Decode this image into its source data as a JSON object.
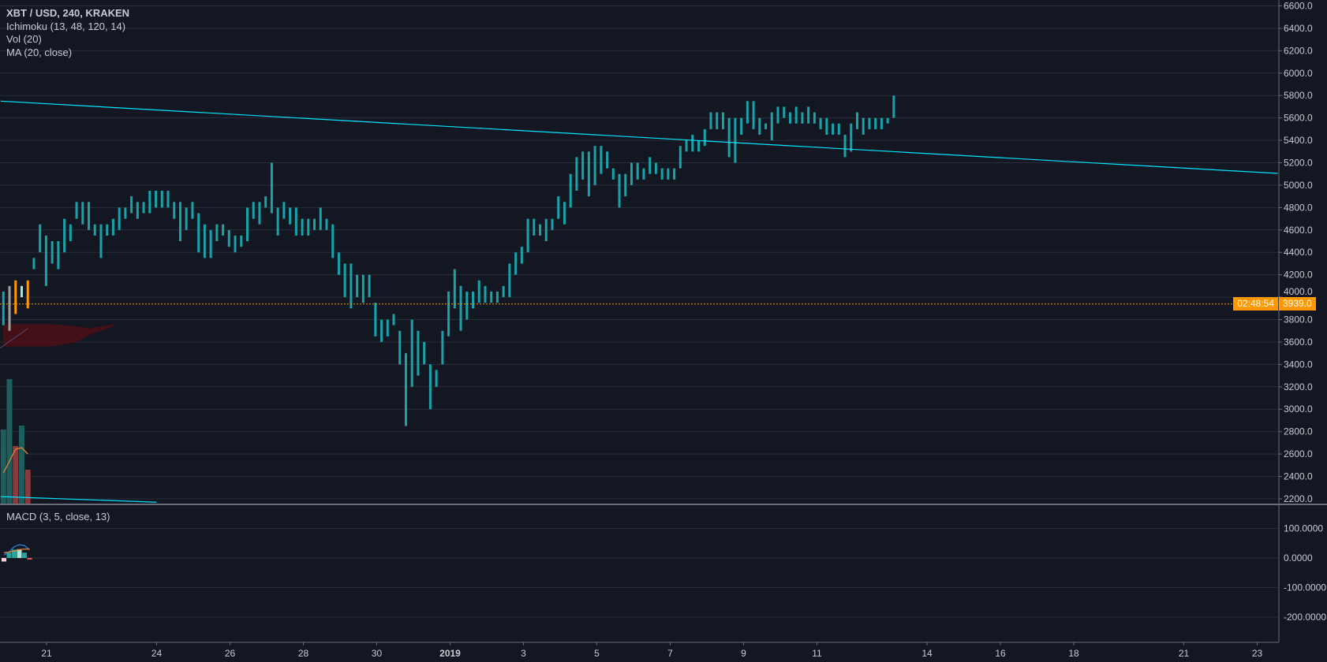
{
  "legend": {
    "symbol": "XBT / USD, 240, KRAKEN",
    "ichimoku": "Ichimoku (13, 48, 120, 14)",
    "volume": "Vol (20)",
    "ma": "MA (20, close)",
    "macd": "MACD (3, 5, close, 13)"
  },
  "last_price": {
    "label": "3939.0",
    "value": 3939.0,
    "countdown": "02:48:54",
    "color": "#ff9800"
  },
  "colors": {
    "background": "#131722",
    "bar": "#19a2a8",
    "grid": "#2a2e39",
    "trendline": "#00e5ff",
    "cloud": "#4a1016",
    "volume_up": "#1d5d5b",
    "volume_down": "#8a3a3f",
    "ma": "#e0883a",
    "macd_line": "#2a7fd4",
    "signal_line": "#e0883a"
  },
  "chart_data": [
    {
      "type": "ohlc-bars",
      "title": "XBT / USD, 240, KRAKEN",
      "interval_minutes": 240,
      "start": "2018-12-19 20:00",
      "bar_format": [
        "high",
        "low"
      ],
      "bars": [
        [
          4050,
          3750
        ],
        [
          4100,
          3700
        ],
        [
          4150,
          3850
        ],
        [
          4100,
          4000
        ],
        [
          4150,
          3900
        ],
        [
          4350,
          4250
        ],
        [
          4650,
          4400
        ],
        [
          4550,
          4100
        ],
        [
          4500,
          4300
        ],
        [
          4500,
          4250
        ],
        [
          4700,
          4400
        ],
        [
          4650,
          4500
        ],
        [
          4850,
          4700
        ],
        [
          4850,
          4650
        ],
        [
          4850,
          4600
        ],
        [
          4650,
          4550
        ],
        [
          4650,
          4350
        ],
        [
          4650,
          4550
        ],
        [
          4700,
          4550
        ],
        [
          4800,
          4600
        ],
        [
          4800,
          4700
        ],
        [
          4900,
          4750
        ],
        [
          4850,
          4700
        ],
        [
          4850,
          4750
        ],
        [
          4950,
          4750
        ],
        [
          4950,
          4800
        ],
        [
          4950,
          4800
        ],
        [
          4950,
          4800
        ],
        [
          4850,
          4700
        ],
        [
          4850,
          4500
        ],
        [
          4800,
          4600
        ],
        [
          4850,
          4700
        ],
        [
          4750,
          4400
        ],
        [
          4650,
          4350
        ],
        [
          4600,
          4350
        ],
        [
          4650,
          4500
        ],
        [
          4650,
          4550
        ],
        [
          4600,
          4450
        ],
        [
          4550,
          4400
        ],
        [
          4550,
          4450
        ],
        [
          4800,
          4500
        ],
        [
          4850,
          4700
        ],
        [
          4850,
          4650
        ],
        [
          4900,
          4800
        ],
        [
          5200,
          4750
        ],
        [
          4800,
          4550
        ],
        [
          4850,
          4700
        ],
        [
          4800,
          4650
        ],
        [
          4800,
          4550
        ],
        [
          4700,
          4550
        ],
        [
          4700,
          4550
        ],
        [
          4700,
          4600
        ],
        [
          4800,
          4600
        ],
        [
          4700,
          4600
        ],
        [
          4650,
          4350
        ],
        [
          4400,
          4200
        ],
        [
          4300,
          4000
        ],
        [
          4300,
          3900
        ],
        [
          4200,
          4000
        ],
        [
          4200,
          3950
        ],
        [
          4200,
          4000
        ],
        [
          3950,
          3650
        ],
        [
          3800,
          3600
        ],
        [
          3800,
          3650
        ],
        [
          3850,
          3750
        ],
        [
          3700,
          3400
        ],
        [
          3500,
          2850
        ],
        [
          3800,
          3200
        ],
        [
          3700,
          3300
        ],
        [
          3600,
          3400
        ],
        [
          3400,
          3000
        ],
        [
          3350,
          3200
        ],
        [
          3700,
          3400
        ],
        [
          4050,
          3650
        ],
        [
          4250,
          3900
        ],
        [
          4100,
          3700
        ],
        [
          4050,
          3800
        ],
        [
          4050,
          3900
        ],
        [
          4150,
          3950
        ],
        [
          4100,
          3950
        ],
        [
          4050,
          3950
        ],
        [
          4050,
          3950
        ],
        [
          4100,
          4000
        ],
        [
          4300,
          4000
        ],
        [
          4400,
          4200
        ],
        [
          4450,
          4300
        ],
        [
          4700,
          4400
        ],
        [
          4700,
          4550
        ],
        [
          4650,
          4550
        ],
        [
          4700,
          4500
        ],
        [
          4700,
          4600
        ],
        [
          4900,
          4700
        ],
        [
          4850,
          4650
        ],
        [
          5100,
          4800
        ],
        [
          5250,
          4950
        ],
        [
          5300,
          5050
        ],
        [
          5300,
          4900
        ],
        [
          5350,
          5000
        ],
        [
          5350,
          5100
        ],
        [
          5300,
          5150
        ],
        [
          5150,
          5050
        ],
        [
          5100,
          4800
        ],
        [
          5100,
          4900
        ],
        [
          5200,
          5000
        ],
        [
          5200,
          5050
        ],
        [
          5150,
          5050
        ],
        [
          5250,
          5100
        ],
        [
          5200,
          5100
        ],
        [
          5150,
          5050
        ],
        [
          5150,
          5050
        ],
        [
          5150,
          5050
        ],
        [
          5350,
          5150
        ],
        [
          5400,
          5300
        ],
        [
          5450,
          5300
        ],
        [
          5400,
          5300
        ],
        [
          5500,
          5350
        ],
        [
          5650,
          5500
        ],
        [
          5650,
          5500
        ],
        [
          5650,
          5500
        ],
        [
          5600,
          5250
        ],
        [
          5600,
          5200
        ],
        [
          5600,
          5450
        ],
        [
          5750,
          5550
        ],
        [
          5750,
          5500
        ],
        [
          5600,
          5450
        ],
        [
          5550,
          5500
        ],
        [
          5650,
          5400
        ],
        [
          5700,
          5550
        ],
        [
          5700,
          5600
        ],
        [
          5650,
          5550
        ],
        [
          5700,
          5550
        ],
        [
          5650,
          5550
        ],
        [
          5700,
          5550
        ],
        [
          5650,
          5550
        ],
        [
          5600,
          5500
        ],
        [
          5600,
          5450
        ],
        [
          5550,
          5450
        ],
        [
          5550,
          5450
        ],
        [
          5450,
          5250
        ],
        [
          5550,
          5300
        ],
        [
          5650,
          5500
        ],
        [
          5600,
          5450
        ],
        [
          5600,
          5500
        ],
        [
          5600,
          5500
        ],
        [
          5600,
          5500
        ],
        [
          5600,
          5550
        ],
        [
          5800,
          5600
        ]
      ],
      "special_bar_colors": [
        {
          "index": 1,
          "color": "#9e9e9e"
        },
        {
          "index": 2,
          "color": "#ff9800"
        },
        {
          "index": 3,
          "color": "#b2dfdb"
        },
        {
          "index": 4,
          "color": "#ff9800"
        }
      ],
      "trendlines": [
        {
          "from": {
            "date": "2018-12-19 18:00",
            "price": 5750
          },
          "to": {
            "date": "2019-01-23 13:30",
            "price": 5105
          }
        },
        {
          "from": {
            "date": "2018-12-19 18:00",
            "price": 2220
          },
          "to": {
            "date": "2018-12-24 00:00",
            "price": 2170
          }
        }
      ],
      "ichimoku_cloud": {
        "dates_bar_index": [
          0,
          4,
          8,
          12,
          14,
          16,
          18
        ],
        "upper": [
          3760,
          3760,
          3760,
          3740,
          3720,
          3740,
          3760
        ],
        "lower": [
          3560,
          3560,
          3560,
          3600,
          3660,
          3700,
          3740
        ]
      },
      "volume": {
        "values": [
          95,
          159,
          74,
          100,
          44
        ],
        "ma": [
          40,
          55,
          70,
          72,
          64
        ]
      },
      "y_axis": {
        "ticks": [
          6600,
          6400,
          6200,
          6000,
          5800,
          5600,
          5400,
          5200,
          5000,
          4800,
          4600,
          4400,
          4200,
          4000,
          3800,
          3600,
          3400,
          3200,
          3000,
          2800,
          2600,
          2400,
          2200
        ],
        "ylim": [
          2150,
          6650
        ],
        "format": "0.0"
      },
      "x_axis": {
        "ticks": [
          {
            "label": "21",
            "date": "2018-12-21"
          },
          {
            "label": "24",
            "date": "2018-12-24"
          },
          {
            "label": "26",
            "date": "2018-12-26"
          },
          {
            "label": "28",
            "date": "2018-12-28"
          },
          {
            "label": "30",
            "date": "2018-12-30"
          },
          {
            "label": "2019",
            "date": "2019-01-01"
          },
          {
            "label": "3",
            "date": "2019-01-03"
          },
          {
            "label": "5",
            "date": "2019-01-05"
          },
          {
            "label": "7",
            "date": "2019-01-07"
          },
          {
            "label": "9",
            "date": "2019-01-09"
          },
          {
            "label": "11",
            "date": "2019-01-11"
          },
          {
            "label": "14",
            "date": "2019-01-14"
          },
          {
            "label": "16",
            "date": "2019-01-16"
          },
          {
            "label": "18",
            "date": "2019-01-18"
          },
          {
            "label": "21",
            "date": "2019-01-21"
          },
          {
            "label": "23",
            "date": "2019-01-23"
          }
        ]
      },
      "grid": "horizontal"
    },
    {
      "type": "macd",
      "title": "MACD (3, 5, close, 13)",
      "histogram": [
        -12,
        18,
        28,
        30,
        18,
        -4
      ],
      "macd_line": [
        10,
        20,
        38,
        45,
        42,
        28
      ],
      "signal_line": [
        18,
        20,
        24,
        28,
        30,
        30
      ],
      "y_axis": {
        "ticks": [
          100,
          0,
          -100,
          -200
        ],
        "labels": [
          "100.0000",
          "0.0000",
          "-100.0000",
          "-200.0000"
        ]
      }
    }
  ]
}
